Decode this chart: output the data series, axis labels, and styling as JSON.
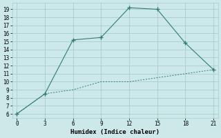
{
  "xlabel": "Humidex (Indice chaleur)",
  "line1_x": [
    0,
    3,
    6,
    9,
    12,
    15,
    18,
    21
  ],
  "line1_y": [
    6,
    8.5,
    15.2,
    15.5,
    19.2,
    19.0,
    14.8,
    11.5
  ],
  "line2_x": [
    0,
    3,
    6,
    9,
    12,
    15,
    18,
    21
  ],
  "line2_y": [
    6,
    8.5,
    9.0,
    10.0,
    10.0,
    10.5,
    11.0,
    11.5
  ],
  "line_color": "#2e7d6e",
  "bg_color": "#cce8e8",
  "grid_color": "#a8cccc",
  "xlim": [
    -0.5,
    21.5
  ],
  "ylim": [
    5.5,
    19.8
  ],
  "xticks": [
    0,
    3,
    6,
    9,
    12,
    15,
    18,
    21
  ],
  "yticks": [
    6,
    7,
    8,
    9,
    10,
    11,
    12,
    13,
    14,
    15,
    16,
    17,
    18,
    19
  ],
  "xlabel_fontsize": 6.5,
  "tick_fontsize": 5.5
}
